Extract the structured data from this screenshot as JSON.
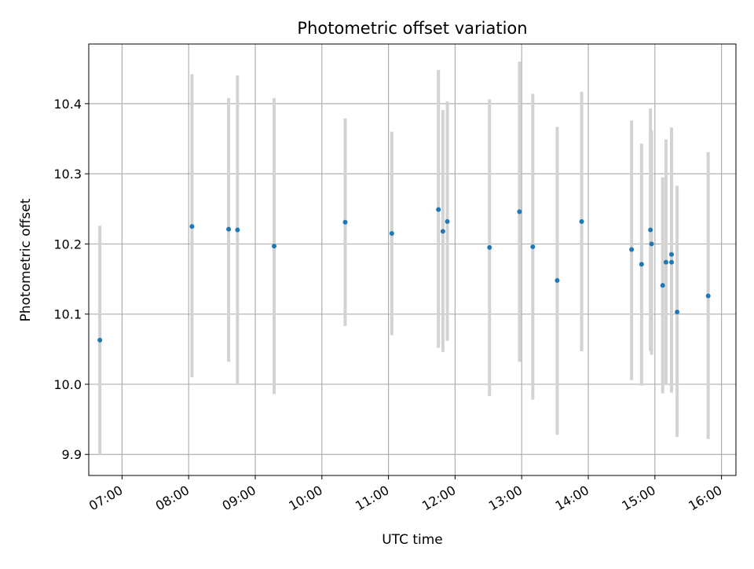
{
  "chart_data": {
    "type": "scatter",
    "title": "Photometric offset variation",
    "xlabel": "UTC time",
    "ylabel": "Photometric offset",
    "x_axis": {
      "kind": "time",
      "range": [
        "06:30",
        "16:13"
      ],
      "tick_labels": [
        "07:00",
        "08:00",
        "09:00",
        "10:00",
        "11:00",
        "12:00",
        "13:00",
        "14:00",
        "15:00",
        "16:00"
      ],
      "tick_label_rotation": "30deg"
    },
    "y_axis": {
      "range": [
        9.87,
        10.485
      ],
      "tick_labels": [
        "9.9",
        "10.0",
        "10.1",
        "10.2",
        "10.3",
        "10.4"
      ]
    },
    "grid": true,
    "legend": "none",
    "colors": {
      "point": "#1f77b4",
      "errorbar": "#d3d3d3",
      "grid": "#b0b0b0",
      "axes": "#000000"
    },
    "series": [
      {
        "points": [
          {
            "x": "06:40",
            "y": 10.063,
            "ymin": 9.9,
            "ymax": 10.226
          },
          {
            "x": "08:03",
            "y": 10.225,
            "ymin": 10.01,
            "ymax": 10.442
          },
          {
            "x": "08:36",
            "y": 10.221,
            "ymin": 10.032,
            "ymax": 10.408
          },
          {
            "x": "08:44",
            "y": 10.22,
            "ymin": 10.0,
            "ymax": 10.44
          },
          {
            "x": "09:17",
            "y": 10.197,
            "ymin": 9.986,
            "ymax": 10.408
          },
          {
            "x": "10:21",
            "y": 10.231,
            "ymin": 10.083,
            "ymax": 10.379
          },
          {
            "x": "11:03",
            "y": 10.215,
            "ymin": 10.07,
            "ymax": 10.36
          },
          {
            "x": "11:45",
            "y": 10.249,
            "ymin": 10.052,
            "ymax": 10.448
          },
          {
            "x": "11:49",
            "y": 10.218,
            "ymin": 10.046,
            "ymax": 10.391
          },
          {
            "x": "11:53",
            "y": 10.232,
            "ymin": 10.062,
            "ymax": 10.403
          },
          {
            "x": "12:31",
            "y": 10.195,
            "ymin": 9.983,
            "ymax": 10.406
          },
          {
            "x": "12:58",
            "y": 10.246,
            "ymin": 10.032,
            "ymax": 10.46
          },
          {
            "x": "13:10",
            "y": 10.196,
            "ymin": 9.978,
            "ymax": 10.414
          },
          {
            "x": "13:32",
            "y": 10.148,
            "ymin": 9.928,
            "ymax": 10.367
          },
          {
            "x": "13:54",
            "y": 10.232,
            "ymin": 10.047,
            "ymax": 10.417
          },
          {
            "x": "14:39",
            "y": 10.192,
            "ymin": 10.006,
            "ymax": 10.376
          },
          {
            "x": "14:48",
            "y": 10.171,
            "ymin": 9.998,
            "ymax": 10.343
          },
          {
            "x": "14:56",
            "y": 10.22,
            "ymin": 10.047,
            "ymax": 10.393
          },
          {
            "x": "14:57",
            "y": 10.2,
            "ymin": 10.042,
            "ymax": 10.362
          },
          {
            "x": "15:07",
            "y": 10.141,
            "ymin": 9.987,
            "ymax": 10.295
          },
          {
            "x": "15:10",
            "y": 10.174,
            "ymin": 9.999,
            "ymax": 10.349
          },
          {
            "x": "15:15",
            "y": 10.185,
            "ymin": 10.003,
            "ymax": 10.366
          },
          {
            "x": "15:15",
            "y": 10.174,
            "ymin": 9.988,
            "ymax": 10.36
          },
          {
            "x": "15:20",
            "y": 10.103,
            "ymin": 9.925,
            "ymax": 10.283
          },
          {
            "x": "15:48",
            "y": 10.126,
            "ymin": 9.922,
            "ymax": 10.331
          }
        ]
      }
    ]
  }
}
